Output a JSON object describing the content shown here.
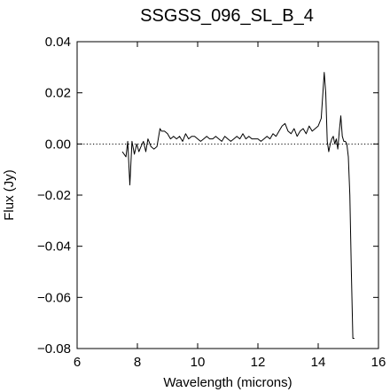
{
  "chart_data": {
    "type": "line",
    "title": "SSGSS_096_SL_B_4",
    "xlabel": "Wavelength (microns)",
    "ylabel": "Flux (Jy)",
    "xlim": [
      6,
      16
    ],
    "ylim": [
      -0.08,
      0.04
    ],
    "x_ticks": [
      6,
      8,
      10,
      12,
      14,
      16
    ],
    "x_tick_labels": [
      "6",
      "8",
      "10",
      "12",
      "14",
      "16"
    ],
    "y_ticks": [
      -0.08,
      -0.06,
      -0.04,
      -0.02,
      0.0,
      0.02,
      0.04
    ],
    "y_tick_labels": [
      "−0.08",
      "−0.06",
      "−0.04",
      "−0.02",
      "0.00",
      "0.02",
      "0.04"
    ],
    "reference_line": {
      "y": 0.0,
      "style": "dotted"
    },
    "grid": false,
    "series": [
      {
        "x": [
          7.5,
          7.62,
          7.68,
          7.75,
          7.82,
          7.9,
          7.98,
          8.05,
          8.12,
          8.2,
          8.28,
          8.35,
          8.45,
          8.55,
          8.65,
          8.75,
          8.8,
          8.9,
          9.0,
          9.1,
          9.2,
          9.3,
          9.4,
          9.5,
          9.6,
          9.7,
          9.8,
          9.9,
          10.0,
          10.1,
          10.2,
          10.3,
          10.4,
          10.5,
          10.6,
          10.7,
          10.8,
          10.9,
          11.0,
          11.1,
          11.2,
          11.3,
          11.4,
          11.5,
          11.6,
          11.7,
          11.8,
          11.9,
          12.0,
          12.1,
          12.2,
          12.3,
          12.4,
          12.5,
          12.6,
          12.7,
          12.8,
          12.9,
          13.0,
          13.1,
          13.2,
          13.3,
          13.4,
          13.5,
          13.6,
          13.7,
          13.8,
          13.9,
          14.0,
          14.1,
          14.2,
          14.25,
          14.3,
          14.35,
          14.4,
          14.45,
          14.5,
          14.55,
          14.6,
          14.65,
          14.7,
          14.75,
          14.8,
          14.85,
          14.9,
          14.95,
          15.0,
          15.05,
          15.1,
          15.15,
          15.2
        ],
        "y": [
          -0.003,
          -0.005,
          0.001,
          -0.016,
          0.001,
          -0.004,
          0.0,
          -0.003,
          -0.001,
          0.001,
          -0.003,
          0.002,
          -0.001,
          -0.002,
          -0.001,
          0.006,
          0.005,
          0.005,
          0.004,
          0.002,
          0.003,
          0.002,
          0.003,
          0.001,
          0.004,
          0.002,
          0.003,
          0.003,
          0.002,
          0.001,
          0.002,
          0.003,
          0.002,
          0.002,
          0.003,
          0.002,
          0.001,
          0.003,
          0.002,
          0.001,
          0.002,
          0.003,
          0.002,
          0.004,
          0.002,
          0.003,
          0.002,
          0.002,
          0.002,
          0.001,
          0.002,
          0.003,
          0.002,
          0.004,
          0.003,
          0.005,
          0.007,
          0.008,
          0.005,
          0.004,
          0.006,
          0.003,
          0.005,
          0.006,
          0.004,
          0.007,
          0.005,
          0.006,
          0.007,
          0.01,
          0.028,
          0.02,
          0.001,
          -0.003,
          0.0,
          0.002,
          0.003,
          0.0,
          0.002,
          -0.002,
          0.005,
          0.011,
          0.003,
          0.001,
          0.001,
          0.0,
          -0.005,
          -0.02,
          -0.05,
          -0.076,
          -0.076
        ]
      }
    ]
  }
}
